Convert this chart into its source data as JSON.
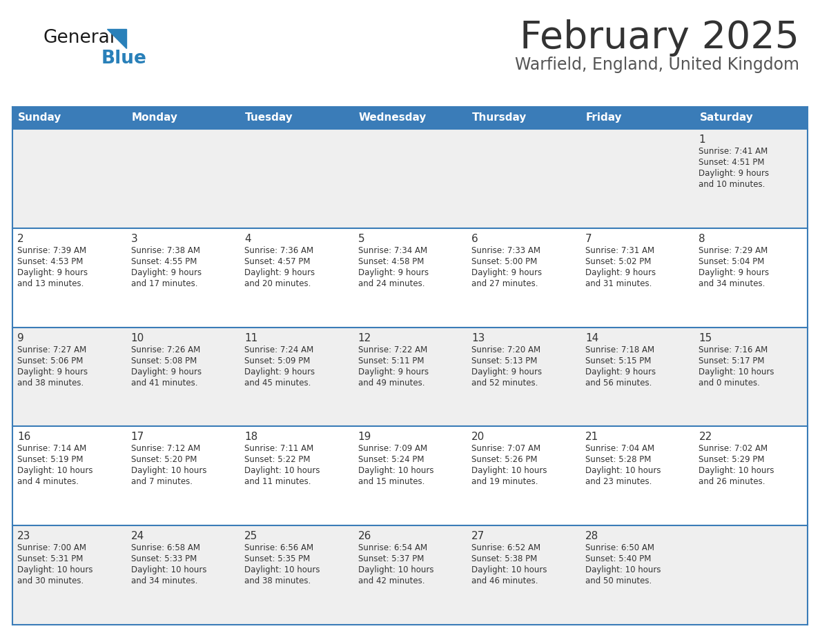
{
  "title": "February 2025",
  "subtitle": "Warfield, England, United Kingdom",
  "days_of_week": [
    "Sunday",
    "Monday",
    "Tuesday",
    "Wednesday",
    "Thursday",
    "Friday",
    "Saturday"
  ],
  "header_bg": "#3a7cb8",
  "header_text": "#ffffff",
  "cell_bg_odd": "#efefef",
  "cell_bg_even": "#ffffff",
  "cell_border_color": "#3a7cb8",
  "day_num_color": "#333333",
  "info_text_color": "#333333",
  "title_color": "#333333",
  "subtitle_color": "#555555",
  "logo_general_color": "#1a1a1a",
  "logo_blue_color": "#2980b9",
  "fig_width": 11.88,
  "fig_height": 9.18,
  "dpi": 100,
  "weeks": [
    [
      {
        "day": null,
        "sunrise": null,
        "sunset": null,
        "daylight_line1": null,
        "daylight_line2": null
      },
      {
        "day": null,
        "sunrise": null,
        "sunset": null,
        "daylight_line1": null,
        "daylight_line2": null
      },
      {
        "day": null,
        "sunrise": null,
        "sunset": null,
        "daylight_line1": null,
        "daylight_line2": null
      },
      {
        "day": null,
        "sunrise": null,
        "sunset": null,
        "daylight_line1": null,
        "daylight_line2": null
      },
      {
        "day": null,
        "sunrise": null,
        "sunset": null,
        "daylight_line1": null,
        "daylight_line2": null
      },
      {
        "day": null,
        "sunrise": null,
        "sunset": null,
        "daylight_line1": null,
        "daylight_line2": null
      },
      {
        "day": 1,
        "sunrise": "Sunrise: 7:41 AM",
        "sunset": "Sunset: 4:51 PM",
        "daylight_line1": "Daylight: 9 hours",
        "daylight_line2": "and 10 minutes."
      }
    ],
    [
      {
        "day": 2,
        "sunrise": "Sunrise: 7:39 AM",
        "sunset": "Sunset: 4:53 PM",
        "daylight_line1": "Daylight: 9 hours",
        "daylight_line2": "and 13 minutes."
      },
      {
        "day": 3,
        "sunrise": "Sunrise: 7:38 AM",
        "sunset": "Sunset: 4:55 PM",
        "daylight_line1": "Daylight: 9 hours",
        "daylight_line2": "and 17 minutes."
      },
      {
        "day": 4,
        "sunrise": "Sunrise: 7:36 AM",
        "sunset": "Sunset: 4:57 PM",
        "daylight_line1": "Daylight: 9 hours",
        "daylight_line2": "and 20 minutes."
      },
      {
        "day": 5,
        "sunrise": "Sunrise: 7:34 AM",
        "sunset": "Sunset: 4:58 PM",
        "daylight_line1": "Daylight: 9 hours",
        "daylight_line2": "and 24 minutes."
      },
      {
        "day": 6,
        "sunrise": "Sunrise: 7:33 AM",
        "sunset": "Sunset: 5:00 PM",
        "daylight_line1": "Daylight: 9 hours",
        "daylight_line2": "and 27 minutes."
      },
      {
        "day": 7,
        "sunrise": "Sunrise: 7:31 AM",
        "sunset": "Sunset: 5:02 PM",
        "daylight_line1": "Daylight: 9 hours",
        "daylight_line2": "and 31 minutes."
      },
      {
        "day": 8,
        "sunrise": "Sunrise: 7:29 AM",
        "sunset": "Sunset: 5:04 PM",
        "daylight_line1": "Daylight: 9 hours",
        "daylight_line2": "and 34 minutes."
      }
    ],
    [
      {
        "day": 9,
        "sunrise": "Sunrise: 7:27 AM",
        "sunset": "Sunset: 5:06 PM",
        "daylight_line1": "Daylight: 9 hours",
        "daylight_line2": "and 38 minutes."
      },
      {
        "day": 10,
        "sunrise": "Sunrise: 7:26 AM",
        "sunset": "Sunset: 5:08 PM",
        "daylight_line1": "Daylight: 9 hours",
        "daylight_line2": "and 41 minutes."
      },
      {
        "day": 11,
        "sunrise": "Sunrise: 7:24 AM",
        "sunset": "Sunset: 5:09 PM",
        "daylight_line1": "Daylight: 9 hours",
        "daylight_line2": "and 45 minutes."
      },
      {
        "day": 12,
        "sunrise": "Sunrise: 7:22 AM",
        "sunset": "Sunset: 5:11 PM",
        "daylight_line1": "Daylight: 9 hours",
        "daylight_line2": "and 49 minutes."
      },
      {
        "day": 13,
        "sunrise": "Sunrise: 7:20 AM",
        "sunset": "Sunset: 5:13 PM",
        "daylight_line1": "Daylight: 9 hours",
        "daylight_line2": "and 52 minutes."
      },
      {
        "day": 14,
        "sunrise": "Sunrise: 7:18 AM",
        "sunset": "Sunset: 5:15 PM",
        "daylight_line1": "Daylight: 9 hours",
        "daylight_line2": "and 56 minutes."
      },
      {
        "day": 15,
        "sunrise": "Sunrise: 7:16 AM",
        "sunset": "Sunset: 5:17 PM",
        "daylight_line1": "Daylight: 10 hours",
        "daylight_line2": "and 0 minutes."
      }
    ],
    [
      {
        "day": 16,
        "sunrise": "Sunrise: 7:14 AM",
        "sunset": "Sunset: 5:19 PM",
        "daylight_line1": "Daylight: 10 hours",
        "daylight_line2": "and 4 minutes."
      },
      {
        "day": 17,
        "sunrise": "Sunrise: 7:12 AM",
        "sunset": "Sunset: 5:20 PM",
        "daylight_line1": "Daylight: 10 hours",
        "daylight_line2": "and 7 minutes."
      },
      {
        "day": 18,
        "sunrise": "Sunrise: 7:11 AM",
        "sunset": "Sunset: 5:22 PM",
        "daylight_line1": "Daylight: 10 hours",
        "daylight_line2": "and 11 minutes."
      },
      {
        "day": 19,
        "sunrise": "Sunrise: 7:09 AM",
        "sunset": "Sunset: 5:24 PM",
        "daylight_line1": "Daylight: 10 hours",
        "daylight_line2": "and 15 minutes."
      },
      {
        "day": 20,
        "sunrise": "Sunrise: 7:07 AM",
        "sunset": "Sunset: 5:26 PM",
        "daylight_line1": "Daylight: 10 hours",
        "daylight_line2": "and 19 minutes."
      },
      {
        "day": 21,
        "sunrise": "Sunrise: 7:04 AM",
        "sunset": "Sunset: 5:28 PM",
        "daylight_line1": "Daylight: 10 hours",
        "daylight_line2": "and 23 minutes."
      },
      {
        "day": 22,
        "sunrise": "Sunrise: 7:02 AM",
        "sunset": "Sunset: 5:29 PM",
        "daylight_line1": "Daylight: 10 hours",
        "daylight_line2": "and 26 minutes."
      }
    ],
    [
      {
        "day": 23,
        "sunrise": "Sunrise: 7:00 AM",
        "sunset": "Sunset: 5:31 PM",
        "daylight_line1": "Daylight: 10 hours",
        "daylight_line2": "and 30 minutes."
      },
      {
        "day": 24,
        "sunrise": "Sunrise: 6:58 AM",
        "sunset": "Sunset: 5:33 PM",
        "daylight_line1": "Daylight: 10 hours",
        "daylight_line2": "and 34 minutes."
      },
      {
        "day": 25,
        "sunrise": "Sunrise: 6:56 AM",
        "sunset": "Sunset: 5:35 PM",
        "daylight_line1": "Daylight: 10 hours",
        "daylight_line2": "and 38 minutes."
      },
      {
        "day": 26,
        "sunrise": "Sunrise: 6:54 AM",
        "sunset": "Sunset: 5:37 PM",
        "daylight_line1": "Daylight: 10 hours",
        "daylight_line2": "and 42 minutes."
      },
      {
        "day": 27,
        "sunrise": "Sunrise: 6:52 AM",
        "sunset": "Sunset: 5:38 PM",
        "daylight_line1": "Daylight: 10 hours",
        "daylight_line2": "and 46 minutes."
      },
      {
        "day": 28,
        "sunrise": "Sunrise: 6:50 AM",
        "sunset": "Sunset: 5:40 PM",
        "daylight_line1": "Daylight: 10 hours",
        "daylight_line2": "and 50 minutes."
      },
      {
        "day": null,
        "sunrise": null,
        "sunset": null,
        "daylight_line1": null,
        "daylight_line2": null
      }
    ]
  ]
}
